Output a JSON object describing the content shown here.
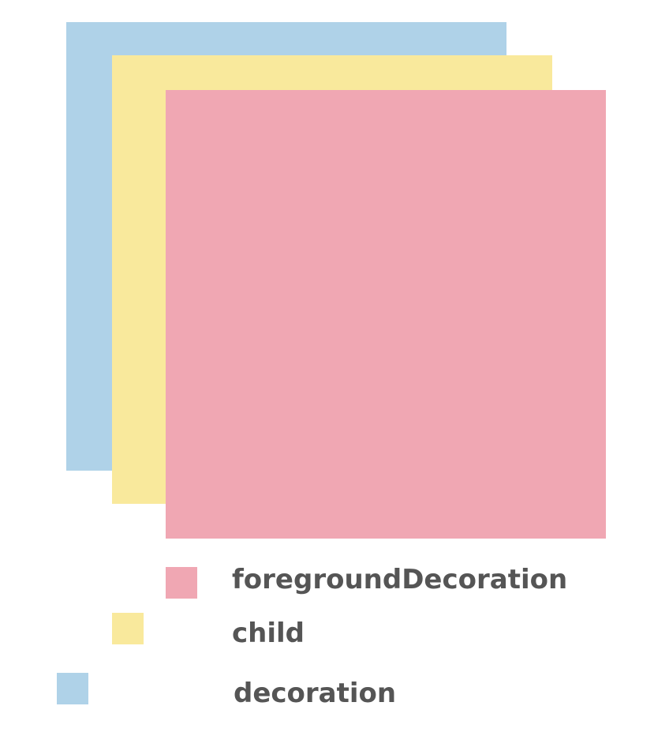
{
  "layers": {
    "decoration": {
      "label": "decoration",
      "color": "#afd2e8"
    },
    "child": {
      "label": "child",
      "color": "#f9e99c"
    },
    "foreground_decoration": {
      "label": "foregroundDecoration",
      "color": "#f0a7b3"
    }
  },
  "legend": {
    "items": [
      {
        "label": "foregroundDecoration",
        "color": "#f0a7b3"
      },
      {
        "label": "child",
        "color": "#f9e99c"
      },
      {
        "label": "decoration",
        "color": "#afd2e8"
      }
    ]
  }
}
